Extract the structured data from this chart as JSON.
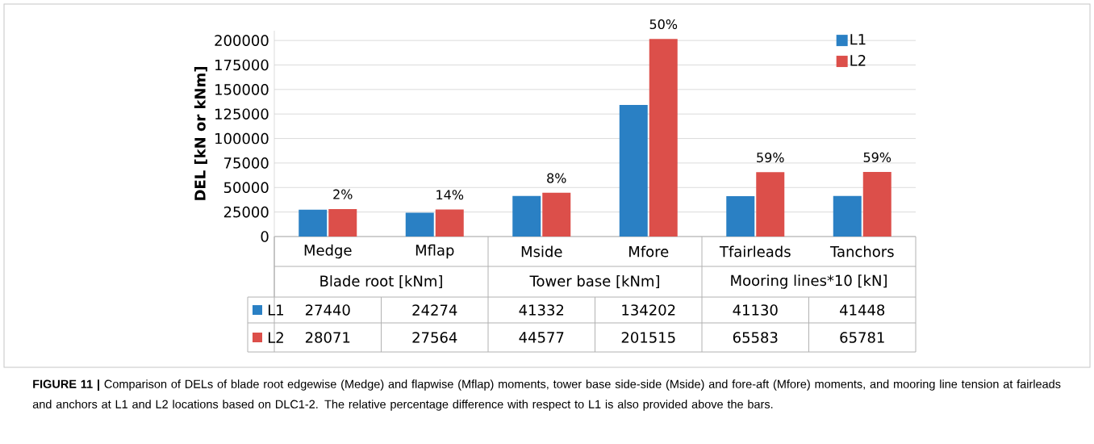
{
  "chart_data": {
    "type": "bar",
    "ylabel": "DEL [kN or kNm]",
    "categories": [
      "Medge",
      "Mflap",
      "Mside",
      "Mfore",
      "Tfairleads",
      "Tanchors"
    ],
    "series": [
      {
        "name": "L1",
        "color": "#2a80c4",
        "values": [
          27440,
          24274,
          41332,
          134202,
          41130,
          41448
        ],
        "value_labels": [
          "27440",
          "24274",
          "41332",
          "134202",
          "41130",
          "41448"
        ]
      },
      {
        "name": "L2",
        "color": "#dc4f4a",
        "values": [
          28071,
          27564,
          44577,
          201515,
          65583,
          65781
        ],
        "value_labels": [
          "28071",
          "27564",
          "44577",
          "201515",
          "65583",
          "65781"
        ]
      }
    ],
    "ylim": [
      0,
      210000
    ],
    "yticks": [
      0,
      25000,
      50000,
      75000,
      100000,
      125000,
      150000,
      175000,
      200000
    ],
    "grid": "y",
    "legend": "top right",
    "annotations": [
      {
        "text": "2%",
        "x": "Medge",
        "y": 28071
      },
      {
        "text": "14%",
        "x": "Mflap",
        "y": 27564
      },
      {
        "text": "8%",
        "x": "Mside",
        "y": 44577
      },
      {
        "text": "50%",
        "x": "Mfore",
        "y": 201515
      },
      {
        "text": "59%",
        "x": "Tfairleads",
        "y": 65583
      },
      {
        "text": "59%",
        "x": "Tanchors",
        "y": 65781
      },
      "Blade root [kNm]",
      "Tower base [kNm]",
      "Mooring lines*10 [kN]",
      "**FIGURE 11 |** Comparison of DELs of blade root edgewise (Medge) and flapwise (Mflap) moments, tower base side-side (Mside) and fore-aft (Mfore) moments, and mooring line tension at fairleads and anchors at L1 and L2 locations based on DLC1-2. The relative percentage difference with respect to L1 is also provided above the bars."
    ]
  }
}
